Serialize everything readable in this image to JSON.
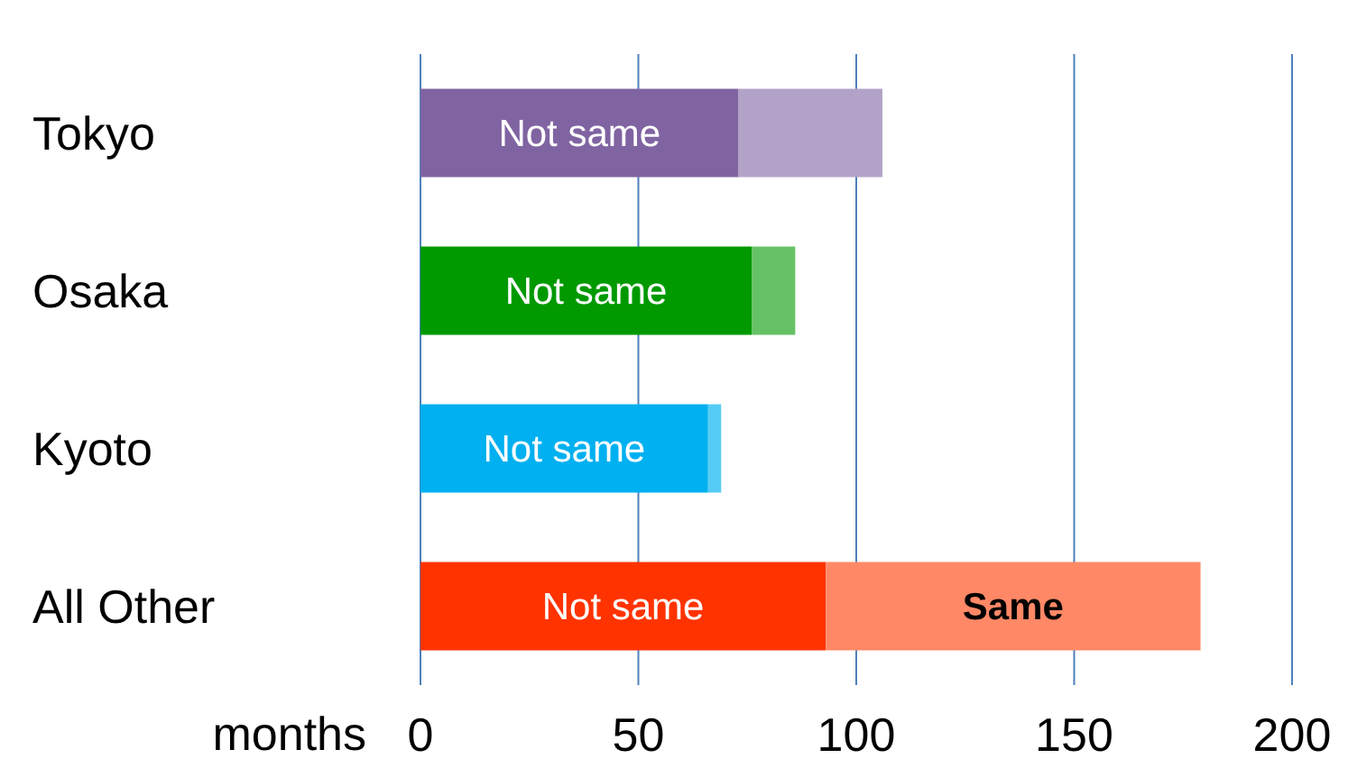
{
  "chart_data": {
    "type": "bar",
    "orientation": "horizontal",
    "stacked": true,
    "xlabel": "months",
    "categories": [
      "Tokyo",
      "Osaka",
      "Kyoto",
      "All Other"
    ],
    "series": [
      {
        "colors": [
          "#8064a2",
          "#009900",
          "#00b0f0",
          "#ff3300"
        ],
        "values": [
          73,
          76,
          66,
          93
        ],
        "value_labels": [
          "Not same",
          "Not same",
          "Not same",
          "Not same"
        ]
      },
      {
        "colors": [
          "#b3a2c7",
          "#66c266",
          "#55ccf5",
          "#ff8866"
        ],
        "values": [
          33,
          10,
          3,
          86
        ],
        "value_labels": [
          null,
          null,
          null,
          "Same"
        ]
      }
    ],
    "xlim": [
      0,
      200
    ],
    "xticks": [
      0,
      50,
      100,
      150,
      200
    ],
    "grid": "x",
    "legend": false
  }
}
